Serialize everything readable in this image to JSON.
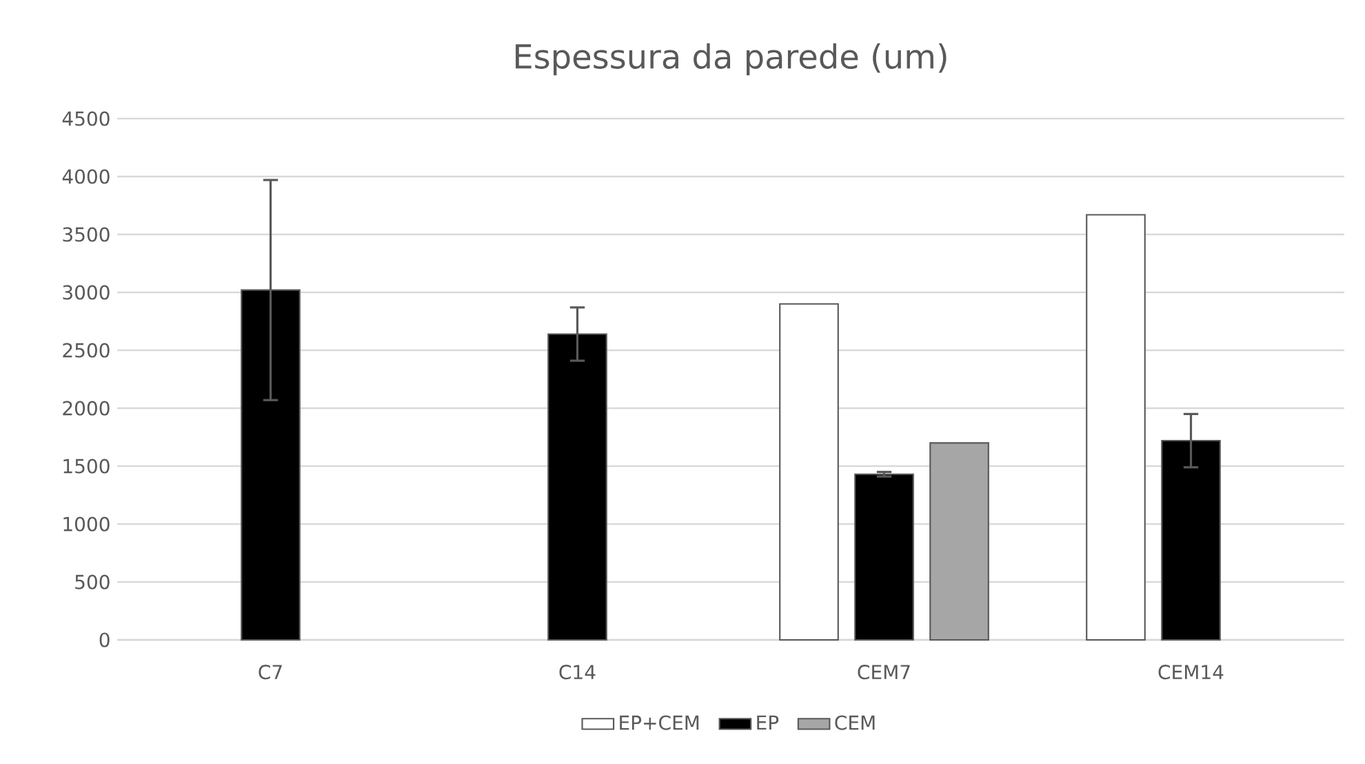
{
  "chart_data": {
    "type": "bar",
    "title": "Espessura da parede (um)",
    "categories": [
      "C7",
      "C14",
      "CEM7",
      "CEM14"
    ],
    "series": [
      {
        "name": "EP+CEM",
        "color": "#ffffff",
        "values": [
          null,
          null,
          2900,
          3670
        ]
      },
      {
        "name": "EP",
        "color": "#000000",
        "values": [
          3020,
          2640,
          1430,
          1720
        ],
        "errors": [
          950,
          230,
          20,
          230
        ]
      },
      {
        "name": "CEM",
        "color": "#a6a6a6",
        "values": [
          null,
          null,
          1700,
          null
        ]
      }
    ],
    "ylim": [
      0,
      4500
    ],
    "yticks": [
      0,
      500,
      1000,
      1500,
      2000,
      2500,
      3000,
      3500,
      4000,
      4500
    ],
    "grid": "y",
    "legend": "bottom"
  }
}
